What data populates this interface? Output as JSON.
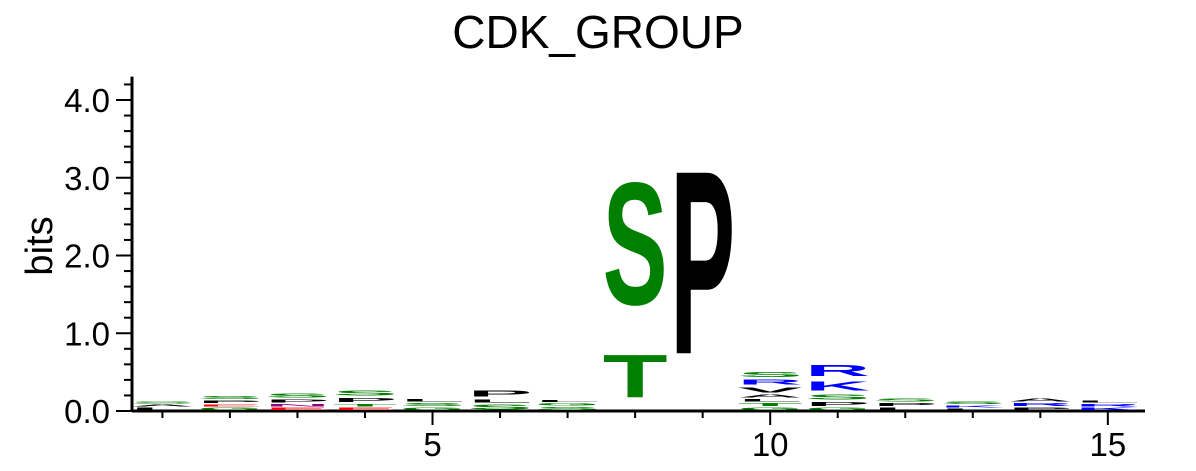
{
  "chart_data": {
    "type": "sequence_logo",
    "title": "CDK_GROUP",
    "ylabel": "bits",
    "xlabel": "",
    "ylim": [
      0,
      4.3
    ],
    "xlim": [
      0.55,
      15.55
    ],
    "y_ticks": [
      "0.0",
      "1.0",
      "2.0",
      "3.0",
      "4.0"
    ],
    "x_ticks": [
      "5",
      "10",
      "15"
    ],
    "grid": false,
    "colors": {
      "polar": "#007f00",
      "hydrophobic": "#000000",
      "basic": "#0000ff",
      "acidic": "#ff0000",
      "amide": "#8b008b",
      "other": "#888888"
    },
    "positions": [
      {
        "pos": 1,
        "letters": [
          {
            "aa": "L",
            "bits": 0.05,
            "color": "#000000"
          },
          {
            "aa": "A",
            "bits": 0.04,
            "color": "#000000"
          },
          {
            "aa": "S",
            "bits": 0.04,
            "color": "#007f00"
          }
        ]
      },
      {
        "pos": 2,
        "letters": [
          {
            "aa": "G",
            "bits": 0.05,
            "color": "#007f00"
          },
          {
            "aa": "E",
            "bits": 0.04,
            "color": "#ff0000"
          },
          {
            "aa": "P",
            "bits": 0.05,
            "color": "#000000"
          },
          {
            "aa": "S",
            "bits": 0.06,
            "color": "#007f00"
          }
        ]
      },
      {
        "pos": 3,
        "letters": [
          {
            "aa": "E",
            "bits": 0.05,
            "color": "#ff0000"
          },
          {
            "aa": "N",
            "bits": 0.05,
            "color": "#8b008b"
          },
          {
            "aa": "P",
            "bits": 0.06,
            "color": "#000000"
          },
          {
            "aa": "S",
            "bits": 0.08,
            "color": "#007f00"
          }
        ]
      },
      {
        "pos": 4,
        "letters": [
          {
            "aa": "E",
            "bits": 0.05,
            "color": "#ff0000"
          },
          {
            "aa": "T",
            "bits": 0.05,
            "color": "#007f00"
          },
          {
            "aa": "P",
            "bits": 0.08,
            "color": "#000000"
          },
          {
            "aa": "S",
            "bits": 0.1,
            "color": "#007f00"
          }
        ]
      },
      {
        "pos": 5,
        "letters": [
          {
            "aa": "G",
            "bits": 0.05,
            "color": "#007f00"
          },
          {
            "aa": "S",
            "bits": 0.06,
            "color": "#007f00"
          },
          {
            "aa": "L",
            "bits": 0.05,
            "color": "#000000"
          }
        ]
      },
      {
        "pos": 6,
        "letters": [
          {
            "aa": "S",
            "bits": 0.1,
            "color": "#007f00"
          },
          {
            "aa": "L",
            "bits": 0.06,
            "color": "#000000"
          },
          {
            "aa": "P",
            "bits": 0.12,
            "color": "#000000"
          }
        ]
      },
      {
        "pos": 7,
        "letters": [
          {
            "aa": "S",
            "bits": 0.06,
            "color": "#007f00"
          },
          {
            "aa": "G",
            "bits": 0.05,
            "color": "#007f00"
          },
          {
            "aa": "L",
            "bits": 0.04,
            "color": "#000000"
          }
        ]
      },
      {
        "pos": 8,
        "letters": [
          {
            "aa": "T",
            "bits": 0.88,
            "color": "#007f00"
          },
          {
            "aa": "S",
            "bits": 2.52,
            "color": "#007f00"
          }
        ]
      },
      {
        "pos": 9,
        "letters": [
          {
            "aa": "P",
            "bits": 3.78,
            "color": "#000000"
          }
        ]
      },
      {
        "pos": 10,
        "letters": [
          {
            "aa": "G",
            "bits": 0.05,
            "color": "#007f00"
          },
          {
            "aa": "T",
            "bits": 0.06,
            "color": "#007f00"
          },
          {
            "aa": "L",
            "bits": 0.05,
            "color": "#000000"
          },
          {
            "aa": "A",
            "bits": 0.06,
            "color": "#000000"
          },
          {
            "aa": "V",
            "bits": 0.1,
            "color": "#000000"
          },
          {
            "aa": "R",
            "bits": 0.1,
            "color": "#0000ff"
          },
          {
            "aa": "S",
            "bits": 0.1,
            "color": "#007f00"
          }
        ]
      },
      {
        "pos": 11,
        "letters": [
          {
            "aa": "G",
            "bits": 0.05,
            "color": "#007f00"
          },
          {
            "aa": "P",
            "bits": 0.08,
            "color": "#000000"
          },
          {
            "aa": "S",
            "bits": 0.1,
            "color": "#007f00"
          },
          {
            "aa": "K",
            "bits": 0.18,
            "color": "#0000ff"
          },
          {
            "aa": "R",
            "bits": 0.22,
            "color": "#0000ff"
          }
        ]
      },
      {
        "pos": 12,
        "letters": [
          {
            "aa": "L",
            "bits": 0.05,
            "color": "#000000"
          },
          {
            "aa": "P",
            "bits": 0.06,
            "color": "#000000"
          },
          {
            "aa": "S",
            "bits": 0.06,
            "color": "#007f00"
          }
        ]
      },
      {
        "pos": 13,
        "letters": [
          {
            "aa": "L",
            "bits": 0.04,
            "color": "#000000"
          },
          {
            "aa": "K",
            "bits": 0.04,
            "color": "#0000ff"
          },
          {
            "aa": "S",
            "bits": 0.05,
            "color": "#007f00"
          }
        ]
      },
      {
        "pos": 14,
        "letters": [
          {
            "aa": "P",
            "bits": 0.05,
            "color": "#000000"
          },
          {
            "aa": "R",
            "bits": 0.06,
            "color": "#0000ff"
          },
          {
            "aa": "A",
            "bits": 0.07,
            "color": "#000000"
          }
        ]
      },
      {
        "pos": 15,
        "letters": [
          {
            "aa": "K",
            "bits": 0.05,
            "color": "#0000ff"
          },
          {
            "aa": "R",
            "bits": 0.05,
            "color": "#0000ff"
          },
          {
            "aa": "L",
            "bits": 0.04,
            "color": "#000000"
          }
        ]
      }
    ]
  }
}
